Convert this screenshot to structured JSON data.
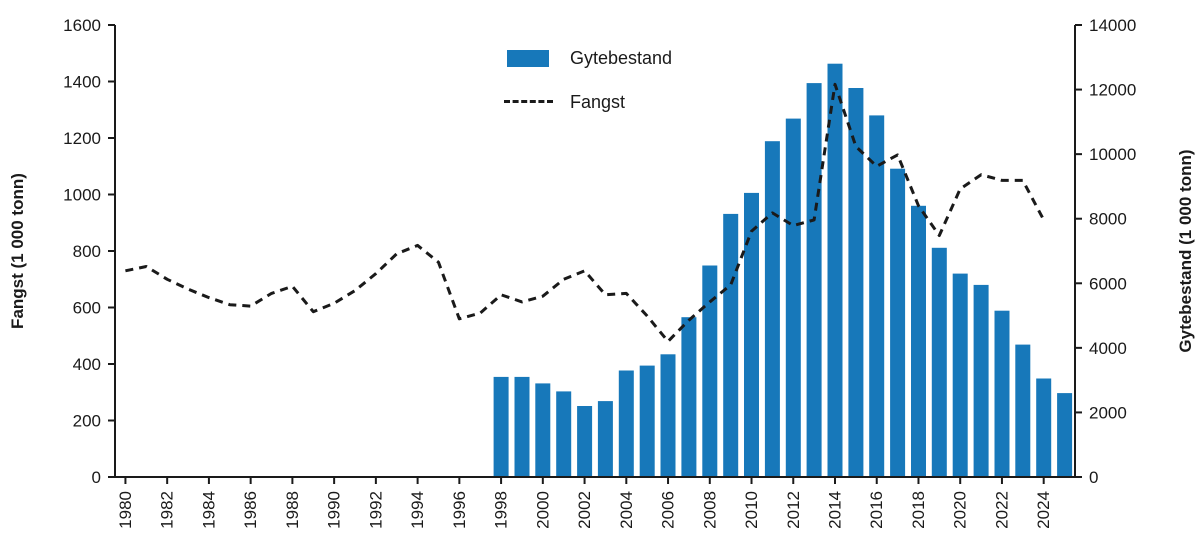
{
  "chart_data": {
    "type": "bar+line",
    "title": "",
    "grid": false,
    "legend_position": "top-center",
    "x": [
      1980,
      1981,
      1982,
      1983,
      1984,
      1985,
      1986,
      1987,
      1988,
      1989,
      1990,
      1991,
      1992,
      1993,
      1994,
      1995,
      1996,
      1997,
      1998,
      1999,
      2000,
      2001,
      2002,
      2003,
      2004,
      2005,
      2006,
      2007,
      2008,
      2009,
      2010,
      2011,
      2012,
      2013,
      2014,
      2015,
      2016,
      2017,
      2018,
      2019,
      2020,
      2021,
      2022,
      2023,
      2024,
      2025
    ],
    "x_tick_step": 2,
    "left_axis": {
      "label": "Fangst (1 000 tonn)",
      "min": 0,
      "max": 1600,
      "step": 200
    },
    "right_axis": {
      "label": "Gytebestand (1 000 tonn)",
      "min": 0,
      "max": 14000,
      "step": 2000
    },
    "series": [
      {
        "name": "Gytebestand",
        "type": "bar",
        "axis": "right",
        "color": "#1778ba",
        "values": [
          null,
          null,
          null,
          null,
          null,
          null,
          null,
          null,
          null,
          null,
          null,
          null,
          null,
          null,
          null,
          null,
          null,
          null,
          3100,
          3100,
          2900,
          2650,
          2200,
          2350,
          3300,
          3450,
          3800,
          4950,
          6550,
          8150,
          8800,
          10400,
          11100,
          12200,
          12800,
          12050,
          11200,
          9550,
          8400,
          7100,
          6300,
          5950,
          5150,
          4100,
          3050,
          2600
        ]
      },
      {
        "name": "Fangst",
        "type": "line",
        "axis": "left",
        "color": "#1a1a1a",
        "dashed": true,
        "values": [
          730,
          745,
          700,
          665,
          635,
          610,
          605,
          650,
          675,
          585,
          615,
          660,
          720,
          790,
          820,
          760,
          560,
          580,
          645,
          620,
          640,
          700,
          730,
          645,
          650,
          570,
          480,
          555,
          620,
          680,
          870,
          935,
          890,
          910,
          1390,
          1170,
          1100,
          1140,
          960,
          855,
          1020,
          1070,
          1050,
          1050,
          910,
          null
        ]
      }
    ]
  }
}
